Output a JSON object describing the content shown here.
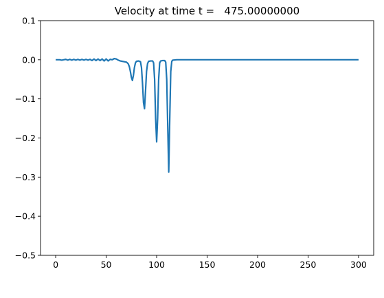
{
  "chart_data": {
    "type": "line",
    "title": "Velocity at time t =   475.00000000",
    "xlabel": "",
    "ylabel": "",
    "xlim": [
      -15,
      315
    ],
    "ylim": [
      -0.5,
      0.1
    ],
    "xticks": [
      0,
      50,
      100,
      150,
      200,
      250,
      300
    ],
    "xtick_labels": [
      "0",
      "50",
      "100",
      "150",
      "200",
      "250",
      "300"
    ],
    "yticks": [
      0.1,
      0.0,
      -0.1,
      -0.2,
      -0.3,
      -0.4,
      -0.5
    ],
    "ytick_labels": [
      "0.1",
      "0.0",
      "−0.1",
      "−0.2",
      "−0.3",
      "−0.4",
      "−0.5"
    ],
    "grid": false,
    "legend": "none",
    "series": [
      {
        "color": "#1f77b4",
        "x": [
          0,
          2,
          4,
          6,
          8,
          10,
          12,
          14,
          16,
          18,
          20,
          22,
          24,
          26,
          28,
          30,
          32,
          34,
          36,
          38,
          40,
          42,
          44,
          46,
          48,
          50,
          52,
          54,
          56,
          58,
          60,
          62,
          64,
          66,
          68,
          70,
          71,
          72,
          73,
          74,
          75,
          76,
          77,
          78,
          79,
          80,
          82,
          84,
          85,
          86,
          87,
          88,
          89,
          90,
          91,
          92,
          94,
          96,
          97,
          98,
          99,
          100,
          101,
          102,
          103,
          104,
          106,
          108,
          109,
          110,
          111,
          112,
          113,
          114,
          115,
          116,
          120,
          130,
          150,
          200,
          250,
          300
        ],
        "y": [
          0.0,
          0.0,
          0.0,
          -0.001,
          0.0,
          0.001,
          -0.001,
          0.001,
          -0.001,
          0.001,
          -0.001,
          0.001,
          -0.001,
          0.001,
          -0.001,
          0.001,
          -0.001,
          0.001,
          -0.002,
          0.002,
          -0.002,
          0.002,
          -0.002,
          0.002,
          -0.003,
          0.002,
          -0.003,
          0.001,
          0.0,
          0.003,
          0.002,
          -0.001,
          -0.003,
          -0.004,
          -0.005,
          -0.006,
          -0.008,
          -0.011,
          -0.018,
          -0.03,
          -0.045,
          -0.053,
          -0.04,
          -0.02,
          -0.008,
          -0.004,
          -0.003,
          -0.005,
          -0.02,
          -0.06,
          -0.11,
          -0.125,
          -0.08,
          -0.03,
          -0.01,
          -0.004,
          -0.003,
          -0.003,
          -0.008,
          -0.05,
          -0.15,
          -0.21,
          -0.15,
          -0.05,
          -0.008,
          -0.003,
          -0.002,
          -0.002,
          -0.006,
          -0.05,
          -0.17,
          -0.287,
          -0.15,
          -0.03,
          -0.004,
          -0.001,
          0.0,
          0.0,
          0.0,
          0.0,
          0.0,
          0.0
        ]
      }
    ]
  }
}
